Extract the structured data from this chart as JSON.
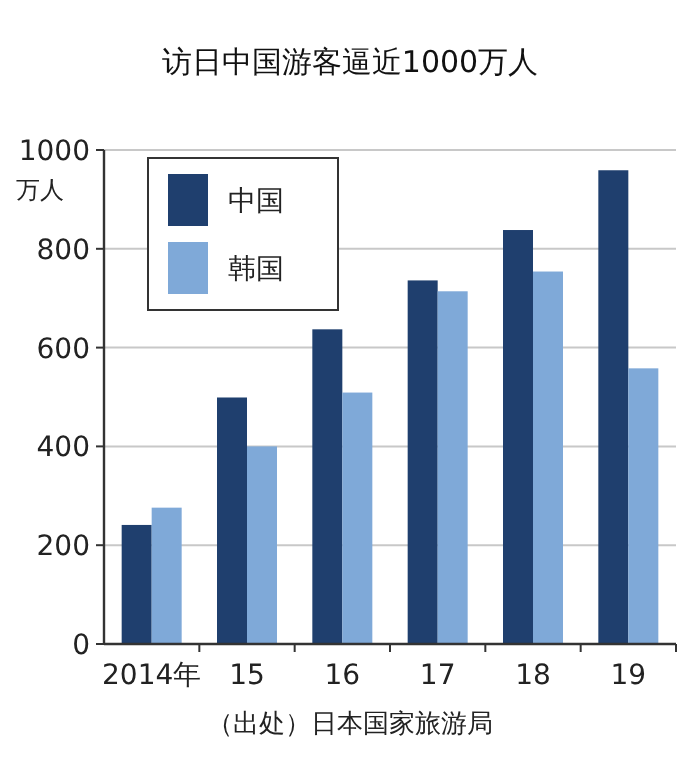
{
  "chart_data": {
    "type": "bar",
    "title": "访日中国游客逼近1000万人",
    "ylabel": "万人",
    "categories": [
      "2014年",
      "15",
      "16",
      "17",
      "18",
      "19"
    ],
    "series": [
      {
        "name": "中国",
        "color": "#1f3f6e",
        "values": [
          241,
          499,
          637,
          736,
          838,
          959
        ]
      },
      {
        "name": "韩国",
        "color": "#7fa9d8",
        "values": [
          276,
          400,
          509,
          714,
          754,
          558
        ]
      }
    ],
    "ylim": [
      0,
      1000
    ],
    "yticks": [
      0,
      200,
      400,
      600,
      800,
      1000
    ],
    "grid": "y",
    "legend": "top left",
    "annotations": [
      "（出处）日本国家旅游局"
    ]
  }
}
